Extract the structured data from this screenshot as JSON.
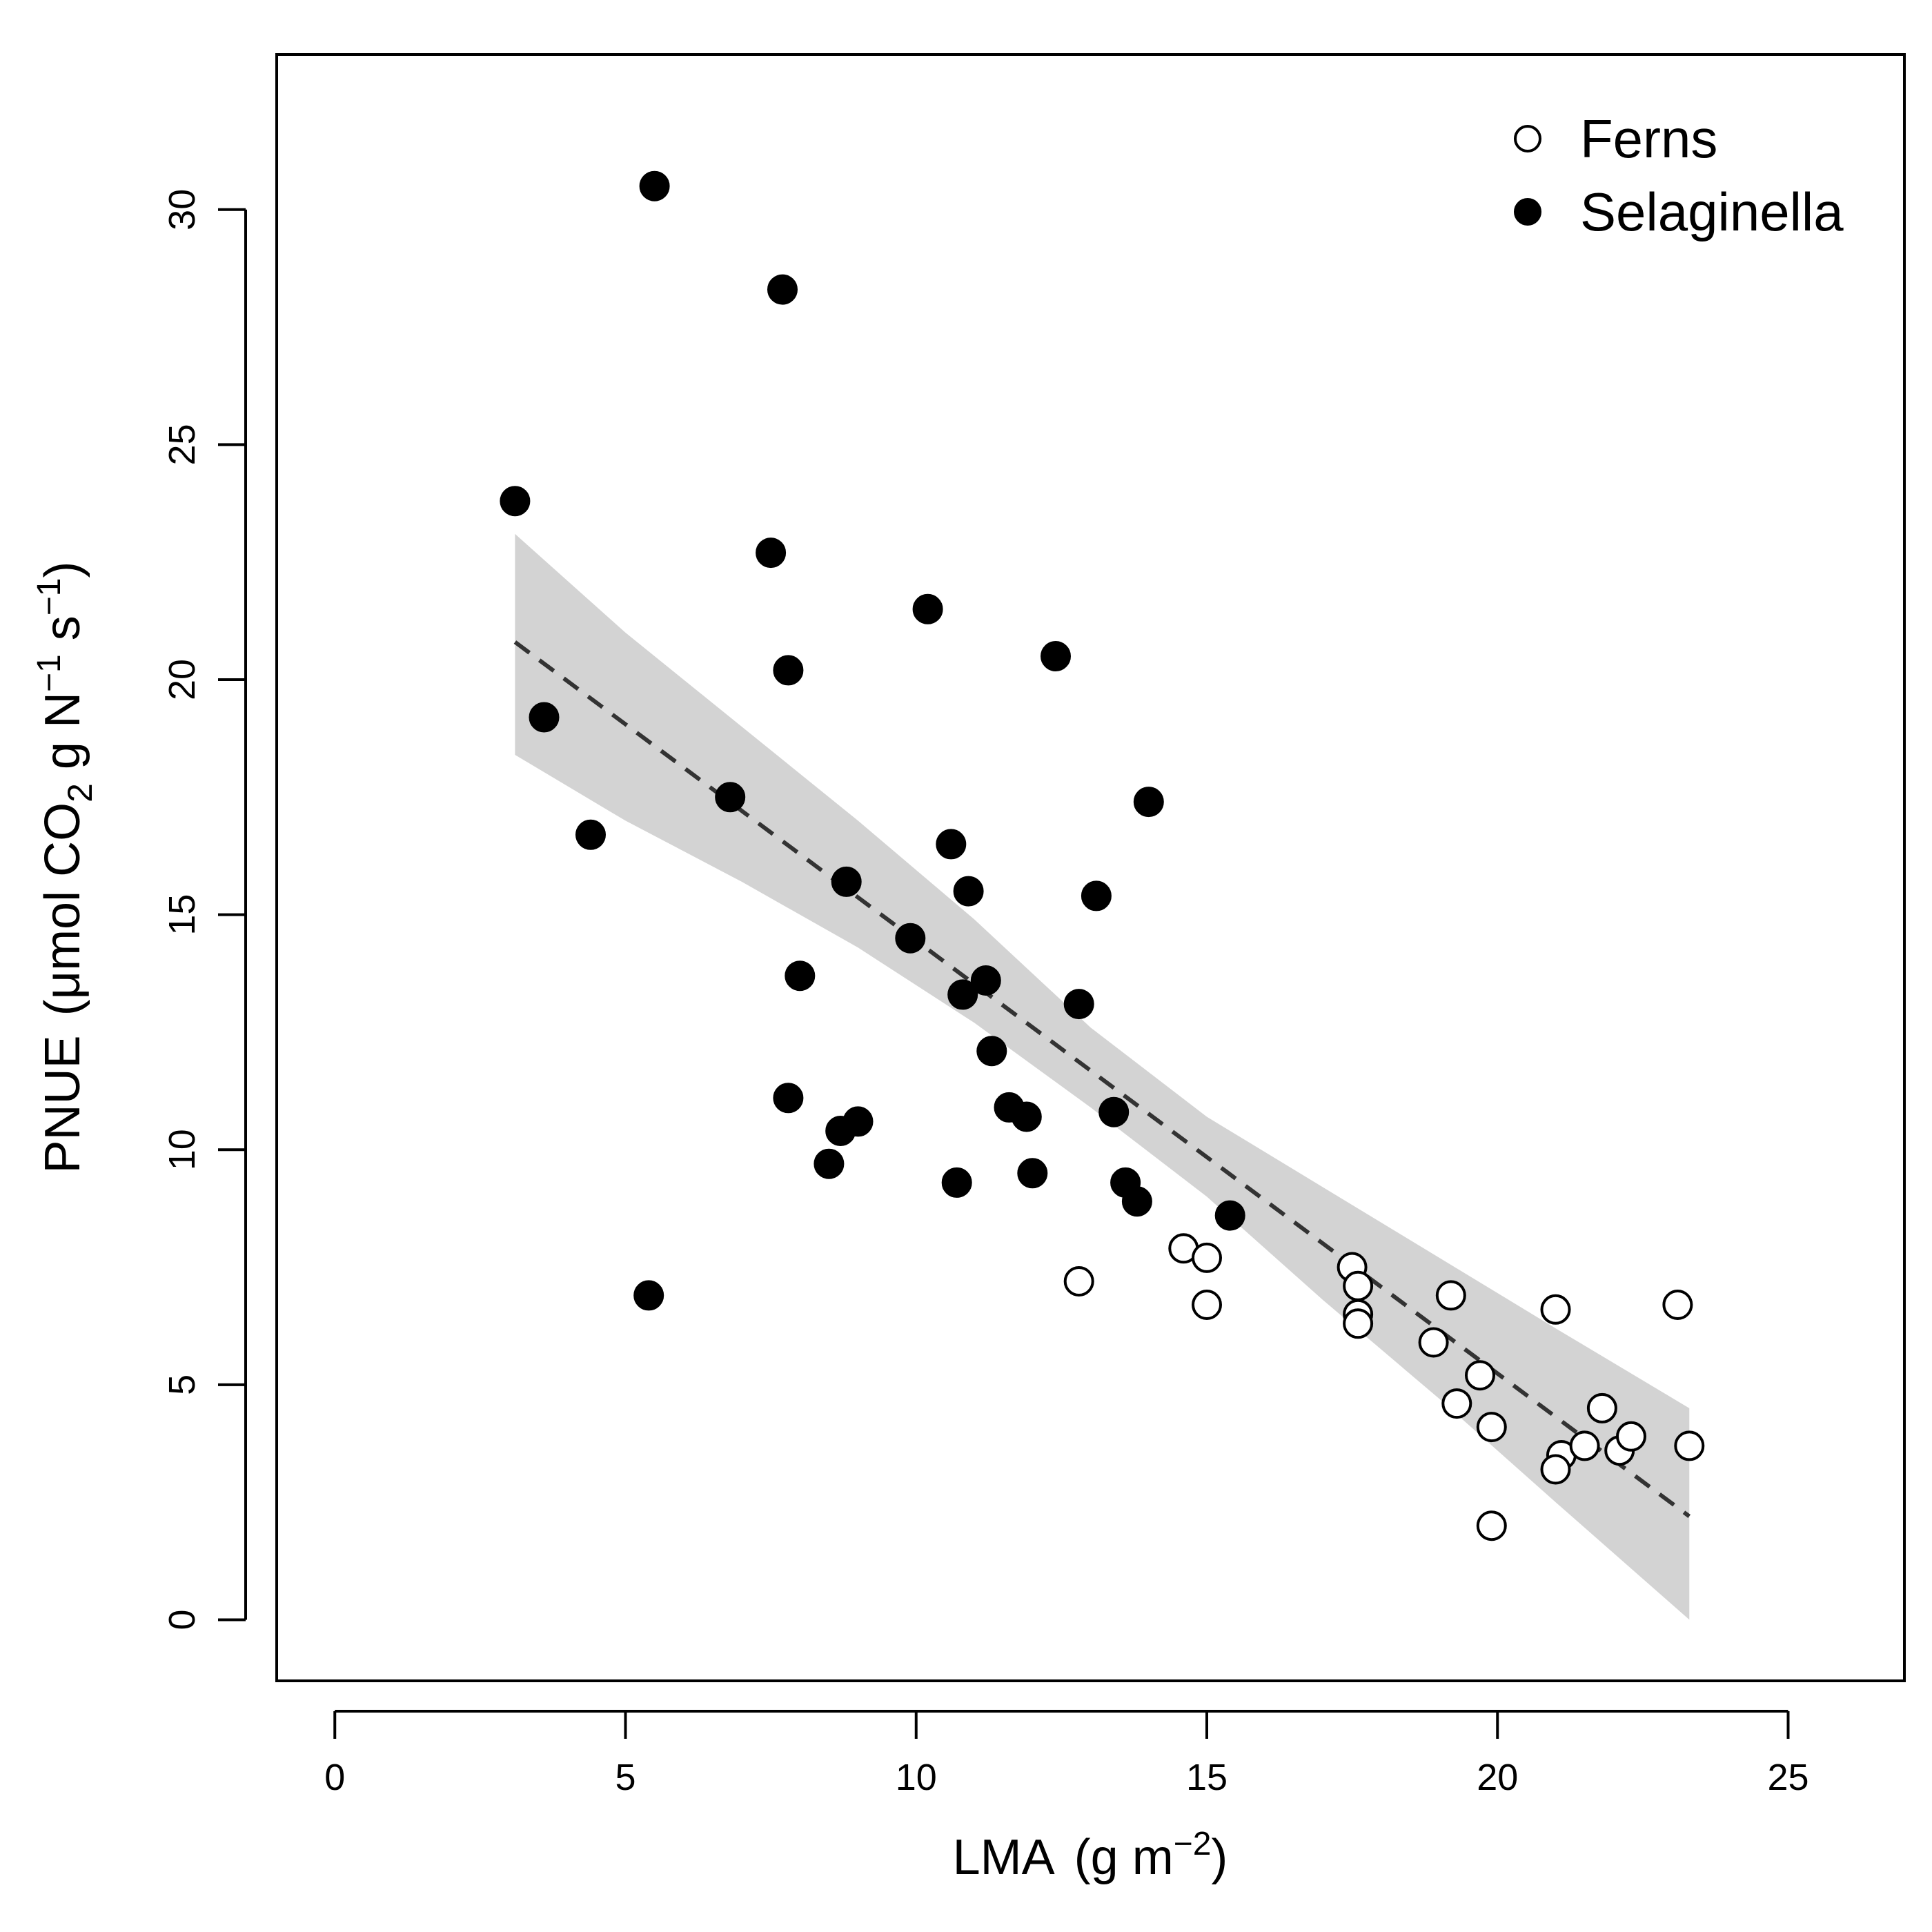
{
  "chart_data": {
    "type": "scatter",
    "xlabel_main": "LMA",
    "xlabel_unit": "g m",
    "xlabel_exp": "−2",
    "ylabel_main": "PNUE",
    "ylabel_unit_parts": [
      "μmol CO",
      "2",
      " g N",
      "−1",
      " s",
      "−1"
    ],
    "xlim": [
      -1,
      27
    ],
    "ylim": [
      -1.3,
      33.3
    ],
    "x_ticks": [
      0,
      5,
      10,
      15,
      20,
      25
    ],
    "y_ticks": [
      0,
      5,
      10,
      15,
      20,
      25,
      30
    ],
    "x_tick_labels": [
      "0",
      "5",
      "10",
      "15",
      "20",
      "25"
    ],
    "y_tick_labels": [
      "0",
      "5",
      "10",
      "15",
      "20",
      "25",
      "30"
    ],
    "legend_position": "top-right",
    "grid": false,
    "series": [
      {
        "name": "Ferns",
        "marker": "open-circle",
        "fill": "#ffffff",
        "points": [
          [
            12.8,
            7.2
          ],
          [
            14.6,
            7.9
          ],
          [
            15.0,
            7.7
          ],
          [
            15.0,
            6.7
          ],
          [
            17.5,
            7.5
          ],
          [
            17.6,
            7.1
          ],
          [
            17.6,
            6.5
          ],
          [
            17.6,
            6.3
          ],
          [
            18.9,
            5.9
          ],
          [
            19.2,
            6.9
          ],
          [
            19.3,
            4.6
          ],
          [
            19.7,
            5.2
          ],
          [
            19.9,
            4.1
          ],
          [
            19.9,
            2.0
          ],
          [
            21.0,
            6.6
          ],
          [
            21.1,
            3.5
          ],
          [
            21.0,
            3.2
          ],
          [
            21.5,
            3.7
          ],
          [
            21.8,
            4.5
          ],
          [
            22.1,
            3.6
          ],
          [
            22.3,
            3.9
          ],
          [
            23.1,
            6.7
          ],
          [
            23.3,
            3.7
          ]
        ]
      },
      {
        "name": "Selaginella",
        "marker": "filled-circle",
        "fill": "#000000",
        "points": [
          [
            3.1,
            23.8
          ],
          [
            3.6,
            19.2
          ],
          [
            4.4,
            16.7
          ],
          [
            5.4,
            6.9
          ],
          [
            5.5,
            30.5
          ],
          [
            6.8,
            17.5
          ],
          [
            7.5,
            22.7
          ],
          [
            7.7,
            28.3
          ],
          [
            7.8,
            20.2
          ],
          [
            7.8,
            11.1
          ],
          [
            8.0,
            13.7
          ],
          [
            8.5,
            9.7
          ],
          [
            8.7,
            10.4
          ],
          [
            8.8,
            15.7
          ],
          [
            9.0,
            10.6
          ],
          [
            9.9,
            14.5
          ],
          [
            10.2,
            21.5
          ],
          [
            10.6,
            16.5
          ],
          [
            10.7,
            9.3
          ],
          [
            10.8,
            13.3
          ],
          [
            10.9,
            15.5
          ],
          [
            11.2,
            13.6
          ],
          [
            11.3,
            12.1
          ],
          [
            11.6,
            10.9
          ],
          [
            11.9,
            10.7
          ],
          [
            12.0,
            9.5
          ],
          [
            12.4,
            20.5
          ],
          [
            12.8,
            13.1
          ],
          [
            13.1,
            15.4
          ],
          [
            13.4,
            10.8
          ],
          [
            13.6,
            9.3
          ],
          [
            13.8,
            8.9
          ],
          [
            14.0,
            17.4
          ],
          [
            15.4,
            8.6
          ]
        ]
      }
    ],
    "fit_line": {
      "style": "dashed",
      "color": "#333333",
      "x": [
        3.1,
        23.3
      ],
      "y": [
        20.8,
        2.2
      ]
    },
    "confidence_band": {
      "color": "#d3d3d3",
      "x": [
        3.1,
        5,
        7,
        9,
        11,
        13,
        15,
        17,
        19,
        21,
        23.3
      ],
      "upper": [
        23.1,
        21.0,
        19.0,
        17.0,
        14.9,
        12.6,
        10.7,
        9.2,
        7.7,
        6.2,
        4.5
      ],
      "lower": [
        18.4,
        17.0,
        15.7,
        14.3,
        12.7,
        10.9,
        9.0,
        6.8,
        4.7,
        2.5,
        0.0
      ]
    }
  }
}
